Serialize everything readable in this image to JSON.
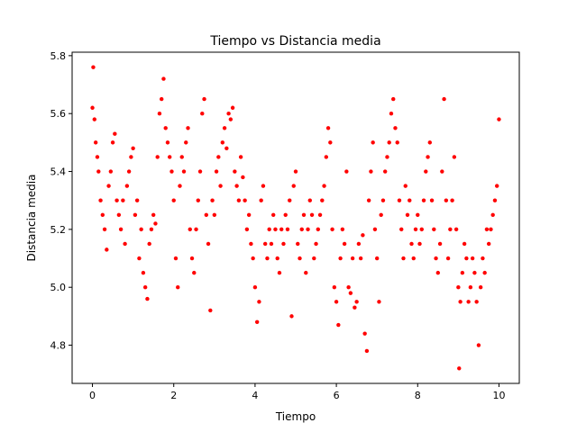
{
  "chart_data": {
    "type": "scatter",
    "title": "Tiempo vs Distancia media",
    "xlabel": "Tiempo",
    "ylabel": "Distancia media",
    "color": "#ff0000",
    "x": [
      0.0,
      0.02,
      0.05,
      0.08,
      0.12,
      0.15,
      0.2,
      0.25,
      0.3,
      0.35,
      0.4,
      0.45,
      0.5,
      0.55,
      0.6,
      0.65,
      0.7,
      0.75,
      0.8,
      0.85,
      0.9,
      0.95,
      1.0,
      1.05,
      1.1,
      1.15,
      1.2,
      1.25,
      1.3,
      1.35,
      1.4,
      1.45,
      1.5,
      1.55,
      1.6,
      1.65,
      1.7,
      1.75,
      1.8,
      1.85,
      1.9,
      1.95,
      2.0,
      2.05,
      2.1,
      2.15,
      2.2,
      2.25,
      2.3,
      2.35,
      2.4,
      2.45,
      2.5,
      2.55,
      2.6,
      2.65,
      2.7,
      2.75,
      2.8,
      2.85,
      2.9,
      2.95,
      3.0,
      3.05,
      3.1,
      3.15,
      3.2,
      3.25,
      3.3,
      3.35,
      3.4,
      3.45,
      3.5,
      3.55,
      3.6,
      3.65,
      3.7,
      3.75,
      3.8,
      3.85,
      3.9,
      3.95,
      4.0,
      4.05,
      4.1,
      4.15,
      4.2,
      4.25,
      4.3,
      4.35,
      4.4,
      4.45,
      4.5,
      4.55,
      4.6,
      4.65,
      4.7,
      4.75,
      4.8,
      4.85,
      4.9,
      4.95,
      5.0,
      5.05,
      5.1,
      5.15,
      5.2,
      5.25,
      5.3,
      5.35,
      5.4,
      5.45,
      5.5,
      5.55,
      5.6,
      5.65,
      5.7,
      5.75,
      5.8,
      5.85,
      5.9,
      5.95,
      6.0,
      6.05,
      6.1,
      6.15,
      6.2,
      6.25,
      6.3,
      6.35,
      6.4,
      6.45,
      6.5,
      6.55,
      6.6,
      6.65,
      6.7,
      6.75,
      6.8,
      6.85,
      6.9,
      6.95,
      7.0,
      7.05,
      7.1,
      7.15,
      7.2,
      7.25,
      7.3,
      7.35,
      7.4,
      7.45,
      7.5,
      7.55,
      7.6,
      7.65,
      7.7,
      7.75,
      7.8,
      7.85,
      7.9,
      7.95,
      8.0,
      8.05,
      8.1,
      8.15,
      8.2,
      8.25,
      8.3,
      8.35,
      8.4,
      8.45,
      8.5,
      8.55,
      8.6,
      8.65,
      8.7,
      8.75,
      8.8,
      8.85,
      8.9,
      8.95,
      9.0,
      9.02,
      9.05,
      9.1,
      9.15,
      9.2,
      9.25,
      9.3,
      9.35,
      9.4,
      9.45,
      9.5,
      9.55,
      9.6,
      9.65,
      9.7,
      9.75,
      9.8,
      9.85,
      9.9,
      9.95,
      10.0
    ],
    "values": [
      5.62,
      5.76,
      5.58,
      5.5,
      5.45,
      5.4,
      5.3,
      5.25,
      5.2,
      5.13,
      5.35,
      5.4,
      5.5,
      5.53,
      5.3,
      5.25,
      5.2,
      5.3,
      5.15,
      5.35,
      5.4,
      5.45,
      5.48,
      5.25,
      5.3,
      5.1,
      5.2,
      5.05,
      5.0,
      4.96,
      5.15,
      5.2,
      5.25,
      5.22,
      5.45,
      5.6,
      5.65,
      5.72,
      5.55,
      5.5,
      5.45,
      5.4,
      5.3,
      5.1,
      5.0,
      5.35,
      5.45,
      5.4,
      5.5,
      5.55,
      5.2,
      5.1,
      5.05,
      5.2,
      5.3,
      5.4,
      5.6,
      5.65,
      5.25,
      5.15,
      4.92,
      5.3,
      5.25,
      5.4,
      5.45,
      5.35,
      5.5,
      5.55,
      5.48,
      5.6,
      5.58,
      5.62,
      5.4,
      5.35,
      5.3,
      5.45,
      5.38,
      5.3,
      5.2,
      5.25,
      5.15,
      5.1,
      5.0,
      4.88,
      4.95,
      5.3,
      5.35,
      5.15,
      5.1,
      5.2,
      5.15,
      5.25,
      5.2,
      5.1,
      5.05,
      5.2,
      5.15,
      5.25,
      5.2,
      5.3,
      4.9,
      5.35,
      5.4,
      5.15,
      5.1,
      5.2,
      5.25,
      5.05,
      5.2,
      5.3,
      5.25,
      5.1,
      5.15,
      5.2,
      5.25,
      5.3,
      5.35,
      5.45,
      5.55,
      5.5,
      5.2,
      5.0,
      4.95,
      4.87,
      5.1,
      5.2,
      5.15,
      5.4,
      5.0,
      4.98,
      5.1,
      4.93,
      4.95,
      5.15,
      5.1,
      5.18,
      4.84,
      4.78,
      5.3,
      5.4,
      5.5,
      5.2,
      5.1,
      4.95,
      5.25,
      5.3,
      5.4,
      5.45,
      5.5,
      5.6,
      5.65,
      5.55,
      5.5,
      5.3,
      5.2,
      5.1,
      5.35,
      5.25,
      5.3,
      5.15,
      5.1,
      5.2,
      5.25,
      5.15,
      5.2,
      5.3,
      5.4,
      5.45,
      5.5,
      5.3,
      5.2,
      5.1,
      5.05,
      5.15,
      5.4,
      5.65,
      5.3,
      5.1,
      5.2,
      5.3,
      5.45,
      5.2,
      5.0,
      4.72,
      4.95,
      5.05,
      5.15,
      5.1,
      4.95,
      5.0,
      5.1,
      5.05,
      4.95,
      4.8,
      5.0,
      5.1,
      5.05,
      5.2,
      5.15,
      5.2,
      5.25,
      5.3,
      5.35,
      5.58
    ],
    "xlim": [
      -0.5,
      10.5
    ],
    "ylim": [
      4.668,
      5.812
    ],
    "xticks": [
      0,
      2,
      4,
      6,
      8,
      10
    ],
    "yticks": [
      4.8,
      {
        "value": 5,
        "label": "5.0"
      },
      5.2,
      5.4,
      5.6,
      5.8
    ]
  }
}
